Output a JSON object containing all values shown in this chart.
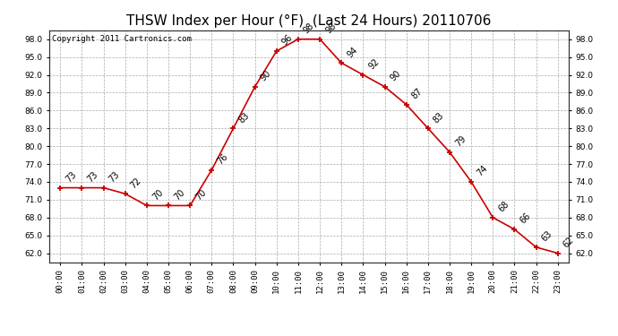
{
  "title": "THSW Index per Hour (°F)  (Last 24 Hours) 20110706",
  "copyright_text": "Copyright 2011 Cartronics.com",
  "hours": [
    "00:00",
    "01:00",
    "02:00",
    "03:00",
    "04:00",
    "05:00",
    "06:00",
    "07:00",
    "08:00",
    "09:00",
    "10:00",
    "11:00",
    "12:00",
    "13:00",
    "14:00",
    "15:00",
    "16:00",
    "17:00",
    "18:00",
    "19:00",
    "20:00",
    "21:00",
    "22:00",
    "23:00"
  ],
  "values": [
    73,
    73,
    73,
    72,
    70,
    70,
    70,
    76,
    83,
    90,
    96,
    98,
    98,
    94,
    92,
    90,
    87,
    83,
    79,
    74,
    68,
    66,
    63,
    62
  ],
  "line_color": "#cc0000",
  "marker_color": "#cc0000",
  "bg_color": "#ffffff",
  "plot_bg_color": "#ffffff",
  "grid_color": "#aaaaaa",
  "ylim_min": 62.0,
  "ylim_max": 98.0,
  "ytick_step": 3.0,
  "title_fontsize": 11,
  "label_fontsize": 7,
  "copyright_fontsize": 6.5
}
